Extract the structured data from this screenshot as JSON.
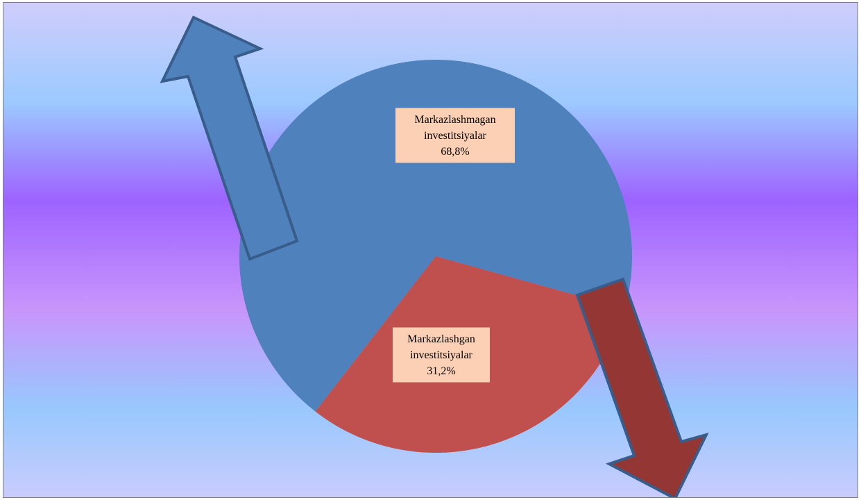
{
  "chart_data": {
    "type": "pie",
    "slices": [
      {
        "name": "Markazlashmagan investitsiyalar",
        "label_lines": [
          "Markazlashmagan",
          "investitsiyalar",
          "68,8%"
        ],
        "value": 68.8,
        "color": "#4f81bd"
      },
      {
        "name": "Markazlashgan investitsiyalar",
        "label_lines": [
          "Markazlashgan",
          "investitsiyalar",
          "31,2%"
        ],
        "value": 31.2,
        "color": "#c0504d"
      }
    ],
    "decorations": {
      "arrow_up_color": "#4f81bd",
      "arrow_down_color": "#943634",
      "arrow_border_color": "#385d8a",
      "label_background": "#fcd0b4"
    }
  }
}
